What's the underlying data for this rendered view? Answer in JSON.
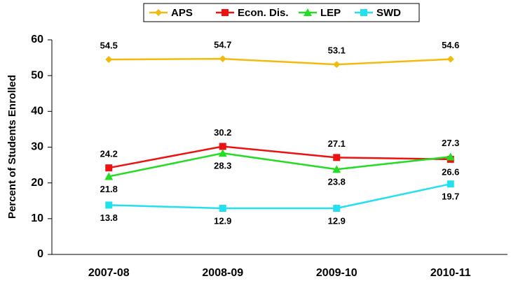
{
  "chart_data": {
    "type": "line",
    "y_label": "Percent of Students Enrolled",
    "categories": [
      "2007-08",
      "2008-09",
      "2009-10",
      "2010-11"
    ],
    "series": [
      {
        "name": "APS",
        "color": "#f2bb0c",
        "marker": "diamond",
        "values": [
          54.5,
          54.7,
          53.1,
          54.6
        ]
      },
      {
        "name": "Econ. Dis.",
        "color": "#ee1111",
        "marker": "square",
        "values": [
          24.2,
          30.2,
          27.1,
          26.6
        ]
      },
      {
        "name": "LEP",
        "color": "#22dd22",
        "marker": "triangle",
        "values": [
          21.8,
          28.3,
          23.8,
          27.3
        ]
      },
      {
        "name": "SWD",
        "color": "#22e0f0",
        "marker": "square",
        "values": [
          13.8,
          12.9,
          12.9,
          19.7
        ]
      }
    ],
    "ylim": [
      0,
      60
    ],
    "yticks": [
      0,
      10,
      20,
      30,
      40,
      50,
      60
    ],
    "grid": false,
    "legend": "top"
  }
}
